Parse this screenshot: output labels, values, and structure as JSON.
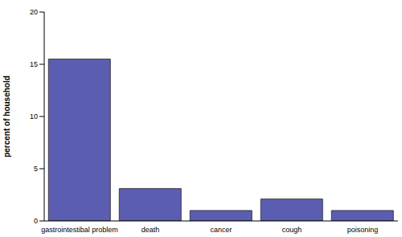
{
  "chart_data": {
    "type": "bar",
    "y_label": "percent of household",
    "categories": [
      "gastrointestibal problem",
      "death",
      "cancer",
      "cough",
      "poisoning"
    ],
    "values": [
      15.5,
      3.1,
      1.0,
      2.1,
      1.0
    ],
    "color": "#5b5eb0",
    "ylim": [
      0,
      20
    ],
    "yticks": [
      0,
      5,
      10,
      15,
      20
    ],
    "grid": false
  }
}
